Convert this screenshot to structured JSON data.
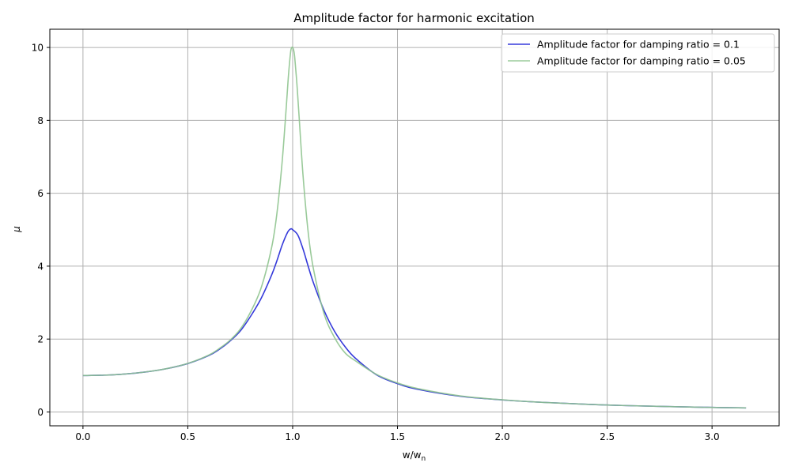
{
  "chart_data": {
    "type": "line",
    "title": "Amplitude factor for harmonic excitation",
    "xlabel": "w/w",
    "xlabel_subscript": "n",
    "ylabel": "μ",
    "xlim": [
      -0.158,
      3.32
    ],
    "ylim": [
      -0.38,
      10.5
    ],
    "xticks": [
      0.0,
      0.5,
      1.0,
      1.5,
      2.0,
      2.5,
      3.0
    ],
    "xtick_labels": [
      "0.0",
      "0.5",
      "1.0",
      "1.5",
      "2.0",
      "2.5",
      "3.0"
    ],
    "yticks": [
      0,
      2,
      4,
      6,
      8,
      10
    ],
    "ytick_labels": [
      "0",
      "2",
      "4",
      "6",
      "8",
      "10"
    ],
    "grid": true,
    "legend_position": "top-right",
    "series": [
      {
        "name": "Amplitude factor for damping ratio = 0.1",
        "color": "#2a2fd8",
        "opacity": 0.95,
        "x": [
          0,
          0.1,
          0.2,
          0.3,
          0.4,
          0.5,
          0.6,
          0.65,
          0.7,
          0.75,
          0.8,
          0.85,
          0.9,
          0.925,
          0.95,
          0.975,
          0.99,
          1.0,
          1.025,
          1.05,
          1.075,
          1.1,
          1.15,
          1.2,
          1.25,
          1.3,
          1.4,
          1.5,
          1.6,
          1.8,
          2.0,
          2.2,
          2.5,
          2.8,
          3.0,
          3.162
        ],
        "y": [
          1.0,
          1.01,
          1.042,
          1.098,
          1.189,
          1.328,
          1.549,
          1.718,
          1.94,
          2.22,
          2.63,
          3.12,
          3.76,
          4.15,
          4.58,
          4.92,
          5.02,
          5.0,
          4.85,
          4.46,
          3.98,
          3.53,
          2.78,
          2.21,
          1.79,
          1.47,
          1.02,
          0.778,
          0.617,
          0.43,
          0.33,
          0.262,
          0.19,
          0.147,
          0.125,
          0.111
        ]
      },
      {
        "name": "Amplitude factor for damping ratio = 0.05",
        "color": "#8fc48f",
        "opacity": 0.9,
        "x": [
          0,
          0.1,
          0.2,
          0.3,
          0.4,
          0.5,
          0.6,
          0.65,
          0.7,
          0.75,
          0.8,
          0.85,
          0.9,
          0.925,
          0.95,
          0.97,
          0.98,
          0.99,
          0.995,
          1.0,
          1.005,
          1.01,
          1.02,
          1.03,
          1.05,
          1.075,
          1.1,
          1.15,
          1.2,
          1.25,
          1.3,
          1.4,
          1.5,
          1.6,
          1.8,
          2.0,
          2.2,
          2.5,
          2.8,
          3.0,
          3.162
        ],
        "y": [
          1.0,
          1.01,
          1.042,
          1.099,
          1.19,
          1.332,
          1.56,
          1.74,
          1.96,
          2.27,
          2.75,
          3.41,
          4.52,
          5.45,
          6.87,
          8.4,
          9.23,
          9.86,
          9.99,
          10.0,
          9.92,
          9.72,
          9.02,
          8.17,
          6.45,
          4.88,
          3.9,
          2.69,
          2.04,
          1.62,
          1.4,
          1.03,
          0.796,
          0.637,
          0.44,
          0.333,
          0.26,
          0.19,
          0.147,
          0.125,
          0.111
        ]
      }
    ]
  }
}
